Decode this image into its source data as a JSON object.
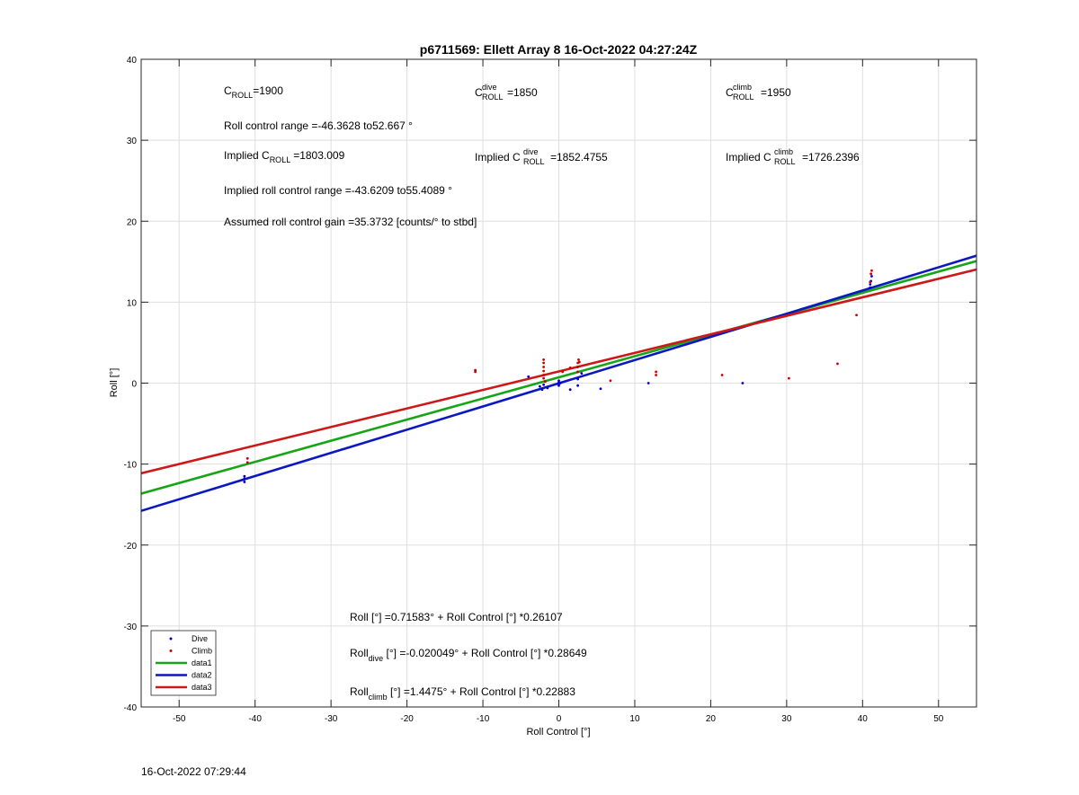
{
  "chart_data": {
    "type": "scatter",
    "title": "p6711569: Ellett Array 8 16-Oct-2022 04:27:24Z",
    "xlabel": "Roll Control [°]",
    "ylabel": "Roll [°]",
    "xlim": [
      -55,
      55
    ],
    "ylim": [
      -40,
      40
    ],
    "xticks": [
      -50,
      -40,
      -30,
      -20,
      -10,
      0,
      10,
      20,
      30,
      40,
      50
    ],
    "yticks": [
      -40,
      -30,
      -20,
      -10,
      0,
      10,
      20,
      30,
      40
    ],
    "grid": true,
    "legend_position": "bottom-left",
    "series": [
      {
        "name": "Dive",
        "kind": "points",
        "color": "#0000cc",
        "x": [
          -41.4,
          -41.4,
          -41.4,
          -4,
          -2.5,
          -2.2,
          -2,
          -1.8,
          -1.5,
          0,
          0,
          0,
          0,
          0.2,
          1.5,
          2.5,
          2.5,
          3,
          5.5,
          11.8,
          24.2,
          41,
          41,
          41.1,
          41.2
        ],
        "y": [
          -12.2,
          -11.8,
          -11.5,
          0.8,
          -0.4,
          -0.8,
          -0.2,
          0.2,
          -0.6,
          -0.1,
          0.3,
          0.1,
          -0.3,
          0,
          -0.8,
          0.5,
          -0.3,
          1.2,
          -0.7,
          0,
          0,
          11.8,
          12.2,
          12.6,
          13.2
        ]
      },
      {
        "name": "Climb",
        "kind": "points",
        "color": "#cc0000",
        "x": [
          -41,
          -41,
          -11,
          -11,
          -2,
          -2,
          -2,
          -2,
          -2,
          -2,
          -1.8,
          0.5,
          1.5,
          2.5,
          2.5,
          2.5,
          2.6,
          2.7,
          6.8,
          12.8,
          12.8,
          21.5,
          30.3,
          36.7,
          39.2,
          41,
          41.1,
          41.2
        ],
        "y": [
          -9.8,
          -9.3,
          1.6,
          1.4,
          1,
          1.5,
          2,
          2.5,
          2.9,
          0.6,
          0.2,
          1.4,
          1.9,
          1.4,
          2,
          2.5,
          2.9,
          2.6,
          0.3,
          1.0,
          1.4,
          1,
          0.6,
          2.4,
          8.4,
          12.5,
          13.5,
          13.9
        ]
      },
      {
        "name": "data1",
        "kind": "line",
        "color": "#16a516",
        "intercept": 0.71583,
        "slope": 0.26107
      },
      {
        "name": "data2",
        "kind": "line",
        "color": "#0b18c0",
        "intercept": -0.020049,
        "slope": 0.28649
      },
      {
        "name": "data3",
        "kind": "line",
        "color": "#cc1818",
        "intercept": 1.4475,
        "slope": 0.22883
      }
    ],
    "annotations": {
      "c_roll": {
        "base": "C",
        "sub": "ROLL",
        "value": "=1900"
      },
      "c_roll_dive": {
        "base": "C",
        "sup": "dive",
        "sub": "ROLL",
        "value": "=1850"
      },
      "c_roll_climb": {
        "base": "C",
        "sup": "climb",
        "sub": "ROLL",
        "value": "=1950"
      },
      "roll_range": "Roll control range =-46.3628 to52.667 °",
      "implied_c_roll": {
        "prefix": "Implied C",
        "sub": "ROLL",
        "value": "=1803.009"
      },
      "implied_c_roll_dive": {
        "prefix": "Implied C",
        "sup": "dive",
        "sub": "ROLL",
        "value": "=1852.4755"
      },
      "implied_c_roll_climb": {
        "prefix": "Implied C",
        "sup": "climb",
        "sub": "ROLL",
        "value": "=1726.2396"
      },
      "implied_range": "Implied roll control range =-43.6209 to55.4089 °",
      "gain": "Assumed roll control gain =35.3732 [counts/° to stbd]",
      "fit_all": "Roll [°] =0.71583° + Roll Control [°] *0.26107",
      "fit_dive": {
        "base": "Roll",
        "sub": "dive",
        "rest": " [°] =-0.020049° + Roll Control [°] *0.28649"
      },
      "fit_climb": {
        "base": "Roll",
        "sub": "climb",
        "rest": " [°] =1.4475° + Roll Control [°] *0.22883"
      }
    }
  },
  "footer_timestamp": "16-Oct-2022 07:29:44"
}
